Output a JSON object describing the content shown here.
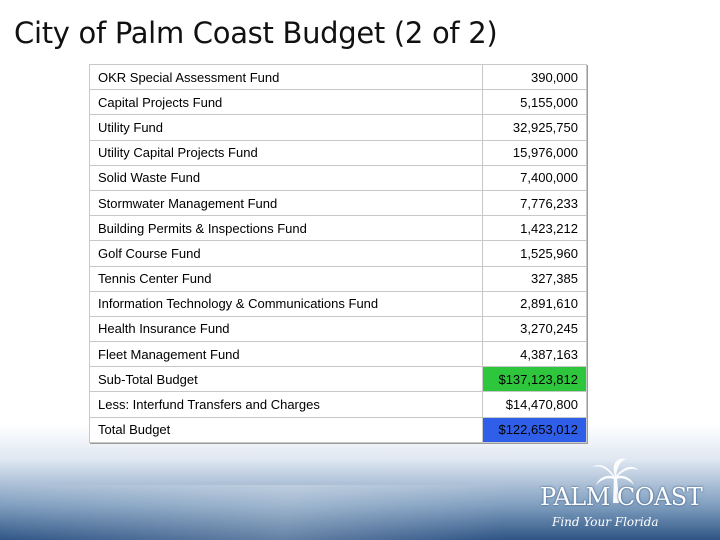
{
  "title": "City of Palm Coast Budget (2 of 2)",
  "rows": [
    {
      "name": "OKR Special Assessment Fund",
      "amount": "390,000"
    },
    {
      "name": "Capital Projects Fund",
      "amount": "5,155,000"
    },
    {
      "name": "Utility Fund",
      "amount": "32,925,750"
    },
    {
      "name": "Utility Capital Projects Fund",
      "amount": "15,976,000"
    },
    {
      "name": "Solid Waste Fund",
      "amount": "7,400,000"
    },
    {
      "name": "Stormwater Management Fund",
      "amount": "7,776,233"
    },
    {
      "name": "Building Permits & Inspections Fund",
      "amount": "1,423,212"
    },
    {
      "name": "Golf Course Fund",
      "amount": "1,525,960"
    },
    {
      "name": "Tennis Center Fund",
      "amount": "327,385"
    },
    {
      "name": "Information Technology & Communications Fund",
      "amount": "2,891,610"
    },
    {
      "name": "Health Insurance Fund",
      "amount": "3,270,245"
    },
    {
      "name": "Fleet Management Fund",
      "amount": "4,387,163"
    }
  ],
  "subtotal": {
    "label": "Sub-Total Budget",
    "amount": "$137,123,812",
    "color": "#2dc63d"
  },
  "transfers": {
    "label": "Less: Interfund Transfers and Charges",
    "amount": "$14,470,800"
  },
  "total": {
    "label": "Total Budget",
    "amount": "$122,653,012",
    "color": "#2f5fe8"
  },
  "logo": {
    "name": "PALM COAST",
    "tagline": "Find Your Florida",
    "icon": "palm-tree-icon"
  }
}
